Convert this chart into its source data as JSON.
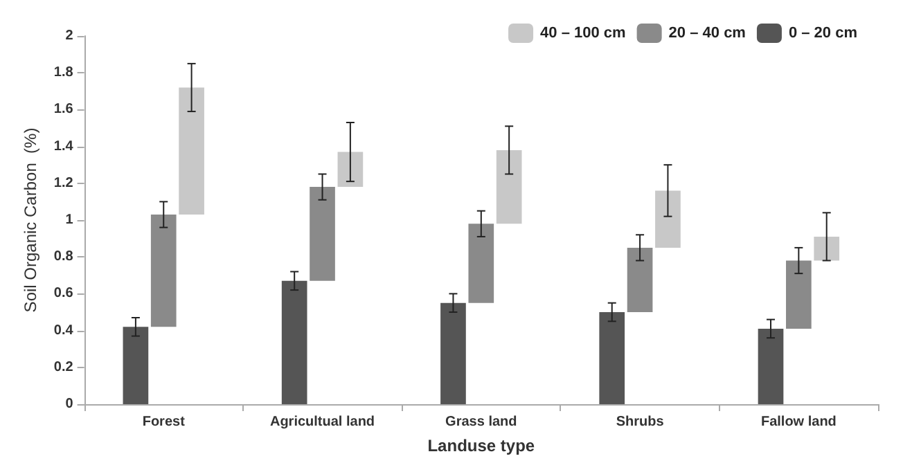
{
  "chart_data": {
    "type": "bar",
    "xlabel": "Landuse type",
    "ylabel": "Soil Organic Carbon  (%)",
    "categories": [
      "Forest",
      "Agricultual land",
      "Grass land",
      "Shrubs",
      "Fallow land"
    ],
    "series": [
      {
        "name": "0 – 20 cm",
        "color": "#555555",
        "base": [
          0,
          0,
          0,
          0,
          0
        ],
        "values": [
          0.42,
          0.67,
          0.55,
          0.5,
          0.41
        ],
        "errors": [
          0.05,
          0.05,
          0.05,
          0.05,
          0.05
        ]
      },
      {
        "name": "20 – 40 cm",
        "color": "#8a8a8a",
        "base": [
          0.42,
          0.67,
          0.55,
          0.5,
          0.41
        ],
        "values": [
          0.61,
          0.51,
          0.43,
          0.35,
          0.37
        ],
        "errors": [
          0.07,
          0.07,
          0.07,
          0.07,
          0.07
        ]
      },
      {
        "name": "40 – 100 cm",
        "color": "#c8c8c8",
        "base": [
          1.03,
          1.18,
          0.98,
          0.85,
          0.78
        ],
        "values": [
          0.69,
          0.19,
          0.4,
          0.31,
          0.13
        ],
        "errors": [
          0.13,
          0.16,
          0.13,
          0.14,
          0.13
        ]
      }
    ],
    "ylim": [
      0,
      2
    ],
    "yticks": [
      0,
      0.2,
      0.4,
      0.6,
      0.8,
      1,
      1.2,
      1.4,
      1.6,
      1.8,
      2
    ],
    "grid": false,
    "legend": "top right"
  }
}
